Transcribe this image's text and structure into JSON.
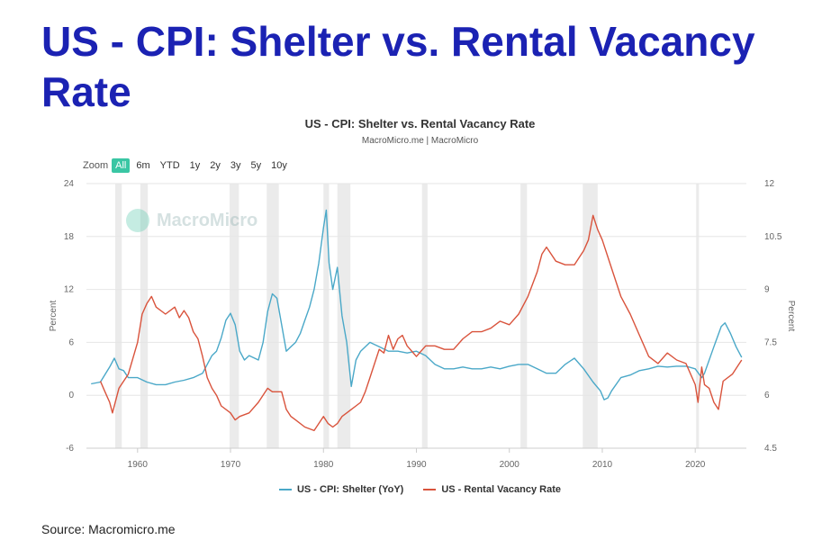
{
  "slide": {
    "title": "US - CPI: Shelter vs. Rental Vacancy Rate",
    "source": "Source: Macromicro.me"
  },
  "watermark": "MacroMicro",
  "chart_data": {
    "type": "line",
    "title": "US - CPI: Shelter vs. Rental Vacancy Rate",
    "subtitle": "MacroMicro.me | MacroMicro",
    "zoom": {
      "label": "Zoom",
      "options": [
        "All",
        "6m",
        "YTD",
        "1y",
        "2y",
        "3y",
        "5y",
        "10y"
      ],
      "selected": "All"
    },
    "xlim": [
      1954.5,
      2025.5
    ],
    "x_ticks": [
      "1960",
      "1970",
      "1980",
      "1990",
      "2000",
      "2010",
      "2020"
    ],
    "y_left": {
      "label": "Percent",
      "range": [
        -6,
        24
      ],
      "ticks": [
        "-6",
        "0",
        "6",
        "12",
        "18",
        "24"
      ]
    },
    "y_right": {
      "label": "Percent",
      "range": [
        4.5,
        12
      ],
      "ticks": [
        "4.5",
        "6",
        "7.5",
        "9",
        "10.5",
        "12"
      ]
    },
    "recessions": [
      [
        1957.6,
        1958.3
      ],
      [
        1960.3,
        1961.1
      ],
      [
        1969.9,
        1970.9
      ],
      [
        1973.9,
        1975.2
      ],
      [
        1980.0,
        1980.6
      ],
      [
        1981.5,
        1982.9
      ],
      [
        1990.6,
        1991.2
      ],
      [
        2001.2,
        2001.9
      ],
      [
        2007.9,
        2009.5
      ],
      [
        2020.1,
        2020.4
      ]
    ],
    "legend": [
      "US - CPI: Shelter (YoY)",
      "US - Rental Vacancy Rate"
    ],
    "series": [
      {
        "name": "US - CPI: Shelter (YoY)",
        "axis": "left",
        "color": "#4aa8c8",
        "points": [
          [
            1955,
            1.3
          ],
          [
            1956,
            1.5
          ],
          [
            1957,
            3.2
          ],
          [
            1957.5,
            4.2
          ],
          [
            1958,
            3.0
          ],
          [
            1958.5,
            2.8
          ],
          [
            1959,
            2.0
          ],
          [
            1960,
            2.0
          ],
          [
            1961,
            1.5
          ],
          [
            1962,
            1.2
          ],
          [
            1963,
            1.2
          ],
          [
            1964,
            1.5
          ],
          [
            1965,
            1.7
          ],
          [
            1966,
            2.0
          ],
          [
            1967,
            2.5
          ],
          [
            1968,
            4.5
          ],
          [
            1968.5,
            5.0
          ],
          [
            1969,
            6.5
          ],
          [
            1969.5,
            8.5
          ],
          [
            1970,
            9.3
          ],
          [
            1970.5,
            8.0
          ],
          [
            1971,
            5.0
          ],
          [
            1971.5,
            4.0
          ],
          [
            1972,
            4.5
          ],
          [
            1973,
            4.0
          ],
          [
            1973.5,
            6.0
          ],
          [
            1974,
            9.5
          ],
          [
            1974.5,
            11.5
          ],
          [
            1975,
            11.0
          ],
          [
            1975.5,
            8.0
          ],
          [
            1976,
            5.0
          ],
          [
            1976.5,
            5.5
          ],
          [
            1977,
            6.0
          ],
          [
            1977.5,
            7.0
          ],
          [
            1978,
            8.5
          ],
          [
            1978.5,
            10.0
          ],
          [
            1979,
            12.0
          ],
          [
            1979.5,
            15.0
          ],
          [
            1980,
            19.0
          ],
          [
            1980.3,
            21.0
          ],
          [
            1980.6,
            15.0
          ],
          [
            1981,
            12.0
          ],
          [
            1981.5,
            14.5
          ],
          [
            1982,
            9.0
          ],
          [
            1982.5,
            6.0
          ],
          [
            1983,
            1.0
          ],
          [
            1983.5,
            4.0
          ],
          [
            1984,
            5.0
          ],
          [
            1985,
            6.0
          ],
          [
            1986,
            5.5
          ],
          [
            1987,
            5.0
          ],
          [
            1988,
            5.0
          ],
          [
            1989,
            4.8
          ],
          [
            1990,
            5.0
          ],
          [
            1991,
            4.5
          ],
          [
            1992,
            3.5
          ],
          [
            1993,
            3.0
          ],
          [
            1994,
            3.0
          ],
          [
            1995,
            3.2
          ],
          [
            1996,
            3.0
          ],
          [
            1997,
            3.0
          ],
          [
            1998,
            3.2
          ],
          [
            1999,
            3.0
          ],
          [
            2000,
            3.3
          ],
          [
            2001,
            3.5
          ],
          [
            2002,
            3.5
          ],
          [
            2003,
            3.0
          ],
          [
            2004,
            2.5
          ],
          [
            2005,
            2.5
          ],
          [
            2006,
            3.5
          ],
          [
            2007,
            4.2
          ],
          [
            2008,
            3.0
          ],
          [
            2009,
            1.5
          ],
          [
            2009.8,
            0.5
          ],
          [
            2010.2,
            -0.5
          ],
          [
            2010.6,
            -0.3
          ],
          [
            2011,
            0.5
          ],
          [
            2012,
            2.0
          ],
          [
            2013,
            2.3
          ],
          [
            2014,
            2.8
          ],
          [
            2015,
            3.0
          ],
          [
            2016,
            3.3
          ],
          [
            2017,
            3.2
          ],
          [
            2018,
            3.3
          ],
          [
            2019,
            3.3
          ],
          [
            2020,
            3.0
          ],
          [
            2020.7,
            2.0
          ],
          [
            2021,
            2.5
          ],
          [
            2022,
            5.5
          ],
          [
            2022.8,
            7.8
          ],
          [
            2023.2,
            8.2
          ],
          [
            2023.8,
            7.0
          ],
          [
            2024.4,
            5.5
          ],
          [
            2025,
            4.3
          ]
        ]
      },
      {
        "name": "US - Rental Vacancy Rate",
        "axis": "right",
        "color": "#d9533c",
        "points": [
          [
            1956,
            6.4
          ],
          [
            1956.5,
            6.1
          ],
          [
            1957,
            5.8
          ],
          [
            1957.3,
            5.5
          ],
          [
            1958,
            6.2
          ],
          [
            1959,
            6.6
          ],
          [
            1960,
            7.5
          ],
          [
            1960.5,
            8.3
          ],
          [
            1961,
            8.6
          ],
          [
            1961.5,
            8.8
          ],
          [
            1962,
            8.5
          ],
          [
            1963,
            8.3
          ],
          [
            1964,
            8.5
          ],
          [
            1964.5,
            8.2
          ],
          [
            1965,
            8.4
          ],
          [
            1965.5,
            8.2
          ],
          [
            1966,
            7.8
          ],
          [
            1966.5,
            7.6
          ],
          [
            1967,
            7.1
          ],
          [
            1967.5,
            6.5
          ],
          [
            1968,
            6.2
          ],
          [
            1968.5,
            6.0
          ],
          [
            1969,
            5.7
          ],
          [
            1970,
            5.5
          ],
          [
            1970.5,
            5.3
          ],
          [
            1971,
            5.4
          ],
          [
            1972,
            5.5
          ],
          [
            1973,
            5.8
          ],
          [
            1974,
            6.2
          ],
          [
            1974.5,
            6.1
          ],
          [
            1975,
            6.1
          ],
          [
            1975.5,
            6.1
          ],
          [
            1976,
            5.6
          ],
          [
            1976.5,
            5.4
          ],
          [
            1977,
            5.3
          ],
          [
            1978,
            5.1
          ],
          [
            1979,
            5.0
          ],
          [
            1980,
            5.4
          ],
          [
            1980.5,
            5.2
          ],
          [
            1981,
            5.1
          ],
          [
            1981.5,
            5.2
          ],
          [
            1982,
            5.4
          ],
          [
            1982.5,
            5.5
          ],
          [
            1983,
            5.6
          ],
          [
            1983.5,
            5.7
          ],
          [
            1984,
            5.8
          ],
          [
            1984.5,
            6.1
          ],
          [
            1985,
            6.5
          ],
          [
            1986,
            7.3
          ],
          [
            1986.5,
            7.2
          ],
          [
            1987,
            7.7
          ],
          [
            1987.5,
            7.3
          ],
          [
            1988,
            7.6
          ],
          [
            1988.5,
            7.7
          ],
          [
            1989,
            7.4
          ],
          [
            1990,
            7.1
          ],
          [
            1991,
            7.4
          ],
          [
            1992,
            7.4
          ],
          [
            1993,
            7.3
          ],
          [
            1994,
            7.3
          ],
          [
            1995,
            7.6
          ],
          [
            1996,
            7.8
          ],
          [
            1997,
            7.8
          ],
          [
            1998,
            7.9
          ],
          [
            1999,
            8.1
          ],
          [
            2000,
            8.0
          ],
          [
            2001,
            8.3
          ],
          [
            2002,
            8.8
          ],
          [
            2003,
            9.5
          ],
          [
            2003.5,
            10.0
          ],
          [
            2004,
            10.2
          ],
          [
            2004.5,
            10.0
          ],
          [
            2005,
            9.8
          ],
          [
            2006,
            9.7
          ],
          [
            2007,
            9.7
          ],
          [
            2007.5,
            9.9
          ],
          [
            2008,
            10.1
          ],
          [
            2008.5,
            10.4
          ],
          [
            2009,
            11.1
          ],
          [
            2009.5,
            10.7
          ],
          [
            2010,
            10.4
          ],
          [
            2011,
            9.6
          ],
          [
            2012,
            8.8
          ],
          [
            2013,
            8.3
          ],
          [
            2014,
            7.7
          ],
          [
            2015,
            7.1
          ],
          [
            2016,
            6.9
          ],
          [
            2017,
            7.2
          ],
          [
            2018,
            7.0
          ],
          [
            2019,
            6.9
          ],
          [
            2020,
            6.3
          ],
          [
            2020.3,
            5.8
          ],
          [
            2020.7,
            6.8
          ],
          [
            2021,
            6.3
          ],
          [
            2021.5,
            6.2
          ],
          [
            2022,
            5.8
          ],
          [
            2022.5,
            5.6
          ],
          [
            2023,
            6.4
          ],
          [
            2024,
            6.6
          ],
          [
            2024.5,
            6.8
          ],
          [
            2025,
            7.0
          ]
        ]
      }
    ]
  }
}
